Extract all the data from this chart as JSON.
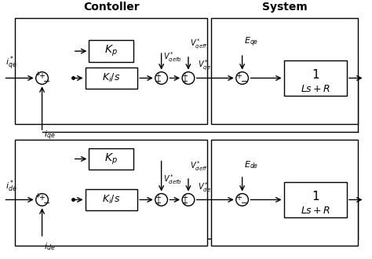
{
  "title_controller": "Contoller",
  "title_system": "System",
  "bg_color": "#ffffff",
  "line_color": "#000000",
  "figsize": [
    4.74,
    3.3
  ],
  "dpi": 100
}
